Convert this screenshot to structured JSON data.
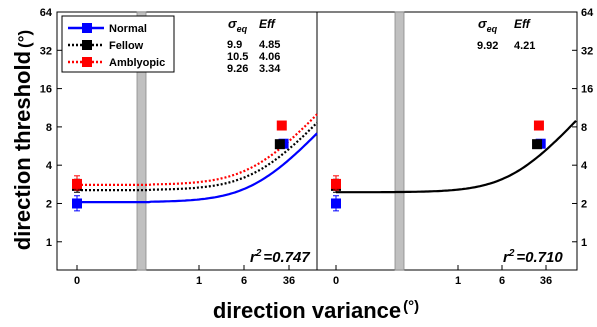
{
  "chart_data": {
    "type": "line",
    "ylabel": "direction threshold",
    "ylabel_unit": "(°)",
    "xlabel": "direction variance",
    "xlabel_unit": "(°)",
    "y_scale": "log2",
    "y_ticks": [
      1,
      2,
      4,
      8,
      16,
      32,
      64
    ],
    "ylim": [
      0.6,
      64
    ],
    "x_ticks": [
      "0",
      "1",
      "6",
      "36"
    ],
    "legend": {
      "placement": "top-left",
      "entries": [
        {
          "name": "Normal",
          "color": "#0000ff",
          "style": "solid"
        },
        {
          "name": "Fellow",
          "color": "#000000",
          "style": "dotted"
        },
        {
          "name": "Amblyopic",
          "color": "#ff0000",
          "style": "dotted"
        }
      ]
    },
    "panels": [
      {
        "id": "left",
        "param_header": {
          "sigma": "σ",
          "sigma_sub": "eq",
          "eff": "Eff"
        },
        "params": [
          {
            "series": "Normal",
            "sigma_eq": "9.9",
            "eff": "4.85"
          },
          {
            "series": "Fellow",
            "sigma_eq": "10.5",
            "eff": "4.06"
          },
          {
            "series": "Amblyopic",
            "sigma_eq": "9.26",
            "eff": "3.34"
          }
        ],
        "r2_label": "r",
        "r2_value": "=0.747",
        "series": [
          {
            "name": "Normal",
            "color": "#0000ff",
            "points": [
              {
                "x": "0",
                "y": 2.0,
                "err": [
                  1.75,
                  2.3
                ]
              },
              {
                "x": 29,
                "y": 5.9,
                "err": null
              }
            ],
            "fit": {
              "floor": 2.05,
              "sigma_eq": 9.9
            }
          },
          {
            "name": "Fellow",
            "color": "#000000",
            "points": [
              {
                "x": "0",
                "y": 2.75,
                "err": [
                  2.45,
                  3.1
                ]
              },
              {
                "x": 25,
                "y": 5.85,
                "err": null
              }
            ],
            "fit": {
              "floor": 2.55,
              "sigma_eq": 10.5
            }
          },
          {
            "name": "Amblyopic",
            "color": "#ff0000",
            "points": [
              {
                "x": "0",
                "y": 2.85,
                "err": [
                  2.55,
                  3.3
                ]
              },
              {
                "x": 27,
                "y": 8.2,
                "err": null
              }
            ],
            "fit": {
              "floor": 2.8,
              "sigma_eq": 9.26
            }
          }
        ]
      },
      {
        "id": "right",
        "param_header": {
          "sigma": "σ",
          "sigma_sub": "eq",
          "eff": "Eff"
        },
        "params": [
          {
            "series": "Fellow",
            "sigma_eq": "9.92",
            "eff": "4.21"
          }
        ],
        "r2_label": "r",
        "r2_value": "=0.710",
        "series": [
          {
            "name": "Normal",
            "color": "#0000ff",
            "points": [
              {
                "x": "0",
                "y": 2.0,
                "err": [
                  1.75,
                  2.3
                ]
              },
              {
                "x": 29,
                "y": 5.9,
                "err": null
              }
            ],
            "fit": null
          },
          {
            "name": "Fellow",
            "color": "#000000",
            "points": [
              {
                "x": "0",
                "y": 2.75,
                "err": [
                  2.45,
                  3.1
                ]
              },
              {
                "x": 25,
                "y": 5.85,
                "err": null
              }
            ],
            "fit": {
              "floor": 2.45,
              "sigma_eq": 9.92
            }
          },
          {
            "name": "Amblyopic",
            "color": "#ff0000",
            "points": [
              {
                "x": "0",
                "y": 2.85,
                "err": [
                  2.55,
                  3.3
                ]
              },
              {
                "x": 27,
                "y": 8.2,
                "err": null
              }
            ],
            "fit": null
          }
        ]
      }
    ]
  }
}
